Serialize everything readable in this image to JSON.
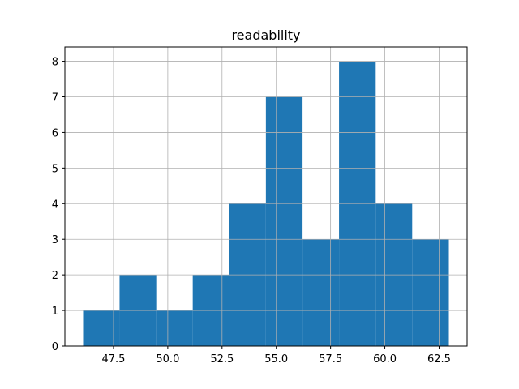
{
  "chart_data": {
    "type": "bar",
    "title": "readability",
    "xlabel": "",
    "ylabel": "",
    "bins": [
      {
        "start": 46.1,
        "end": 47.78,
        "count": 1
      },
      {
        "start": 47.78,
        "end": 49.47,
        "count": 2
      },
      {
        "start": 49.47,
        "end": 51.15,
        "count": 1
      },
      {
        "start": 51.15,
        "end": 52.84,
        "count": 2
      },
      {
        "start": 52.84,
        "end": 54.52,
        "count": 4
      },
      {
        "start": 54.52,
        "end": 56.21,
        "count": 7
      },
      {
        "start": 56.21,
        "end": 57.89,
        "count": 3
      },
      {
        "start": 57.89,
        "end": 59.58,
        "count": 8
      },
      {
        "start": 59.58,
        "end": 61.26,
        "count": 4
      },
      {
        "start": 61.26,
        "end": 62.95,
        "count": 3
      }
    ],
    "xlim": [
      45.26,
      63.79
    ],
    "ylim": [
      0,
      8.4
    ],
    "x_ticks": [
      47.5,
      50.0,
      52.5,
      55.0,
      57.5,
      60.0,
      62.5
    ],
    "x_tick_labels": [
      "47.5",
      "50.0",
      "52.5",
      "55.0",
      "57.5",
      "60.0",
      "62.5"
    ],
    "y_ticks": [
      0,
      1,
      2,
      3,
      4,
      5,
      6,
      7,
      8
    ],
    "y_tick_labels": [
      "0",
      "1",
      "2",
      "3",
      "4",
      "5",
      "6",
      "7",
      "8"
    ],
    "grid": true,
    "colors": {
      "bar": "#1f77b4",
      "grid": "#b0b0b0",
      "axis": "#000000"
    }
  }
}
